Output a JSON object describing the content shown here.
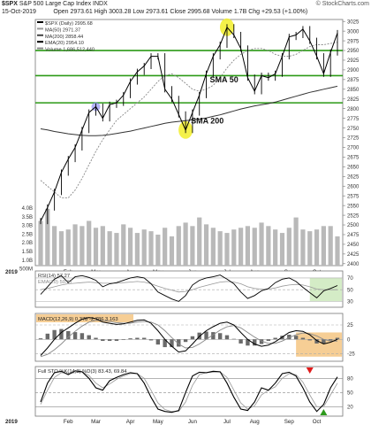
{
  "header": {
    "symbol": "$SPX",
    "name": "S&P 500 Large Cap Index",
    "exchange": "INDX",
    "date": "15-Oct-2019",
    "open_label": "Open",
    "open": "2973.61",
    "high_label": "High",
    "high": "3003.28",
    "low_label": "Low",
    "low": "2973.61",
    "close_label": "Close",
    "close": "2995.68",
    "vol_label": "Volume",
    "vol": "1.7B",
    "chg_label": "Chg",
    "chg": "+29.53 (+1.00%)",
    "brand": "© StockCharts.com"
  },
  "legend": [
    {
      "text": "$SPX (Daily) 2995.68",
      "color": "#000000"
    },
    {
      "text": "MA(50) 2971.37",
      "color": "#9a9a9a"
    },
    {
      "text": "MA(200) 2858.44",
      "color": "#444444"
    },
    {
      "text": "EMA(20) 2954.10",
      "color": "#000000"
    },
    {
      "text": "Volume 1,686,512,440",
      "color": "#888888"
    }
  ],
  "annotations": {
    "sma50": "SMA 50",
    "sma200": "SMA 200"
  },
  "colors": {
    "support_line": "#2b9a16",
    "highlight": "#f2ee2a",
    "price": "#000000",
    "volume": "#b9b9b9",
    "panel_fill": "#f4f4f4",
    "orange_box": "#f5c98a",
    "green_box": "#cfeac0",
    "down_arrow": "#e01b1b",
    "up_arrow": "#2e9a1d"
  },
  "chart_data": [
    {
      "type": "line",
      "title": "$SPX S&P 500 Large Cap Index INDX",
      "x_labels": [
        "2019",
        "Feb",
        "Mar",
        "Apr",
        "May",
        "Jun",
        "Jul",
        "Aug",
        "Sep",
        "Oct"
      ],
      "y_ticks": [
        2400,
        2425,
        2450,
        2475,
        2500,
        2525,
        2550,
        2575,
        2600,
        2625,
        2650,
        2675,
        2700,
        2725,
        2750,
        2775,
        2800,
        2825,
        2850,
        2875,
        2900,
        2925,
        2950,
        2975,
        3000,
        3025
      ],
      "ylim": [
        2395,
        3030
      ],
      "volume_ticks": [
        "4.0B",
        "3.5B",
        "3.0B",
        "2.5B",
        "2.0B",
        "1.5B",
        "1.0B",
        "500M"
      ],
      "support_levels": [
        2950,
        2885,
        2815
      ],
      "series": [
        {
          "name": "$SPX",
          "values": [
            2510,
            2545,
            2585,
            2635,
            2670,
            2700,
            2745,
            2790,
            2805,
            2775,
            2810,
            2815,
            2835,
            2870,
            2895,
            2910,
            2935,
            2935,
            2850,
            2825,
            2785,
            2745,
            2790,
            2835,
            2890,
            2935,
            2965,
            3010,
            2990,
            2955,
            2880,
            2845,
            2885,
            2880,
            2890,
            2935,
            2985,
            2990,
            3005,
            2975,
            2935,
            2890,
            2945,
            2995
          ]
        },
        {
          "name": "MA(50)",
          "values": [
            2615,
            2600,
            2585,
            2570,
            2570,
            2590,
            2620,
            2655,
            2690,
            2720,
            2745,
            2770,
            2785,
            2800,
            2815,
            2830,
            2850,
            2870,
            2885,
            2890,
            2880,
            2865,
            2850,
            2845,
            2850,
            2860,
            2880,
            2905,
            2925,
            2940,
            2950,
            2955,
            2955,
            2950,
            2940,
            2935,
            2935,
            2940,
            2950,
            2960,
            2965,
            2965,
            2968,
            2971
          ]
        },
        {
          "name": "MA(200)",
          "values": [
            2748,
            2745,
            2741,
            2738,
            2735,
            2733,
            2731,
            2730,
            2730,
            2731,
            2733,
            2736,
            2739,
            2742,
            2746,
            2750,
            2754,
            2758,
            2762,
            2765,
            2767,
            2769,
            2771,
            2773,
            2776,
            2780,
            2784,
            2789,
            2794,
            2799,
            2803,
            2807,
            2810,
            2813,
            2817,
            2822,
            2827,
            2832,
            2837,
            2842,
            2846,
            2850,
            2854,
            2858
          ]
        }
      ],
      "volume": [
        2.6,
        3.3,
        2.3,
        2.0,
        2.1,
        2.4,
        2.3,
        2.6,
        2.2,
        2.3,
        2.0,
        1.9,
        2.4,
        2.2,
        1.9,
        2.1,
        2.0,
        1.8,
        2.2,
        1.7,
        2.3,
        2.5,
        2.3,
        2.8,
        2.4,
        2.2,
        2.0,
        1.9,
        2.1,
        2.2,
        2.3,
        2.2,
        2.5,
        2.3,
        2.1,
        1.9,
        2.2,
        2.8,
        2.1,
        2.0,
        2.1,
        2.3,
        2.3,
        1.7
      ]
    },
    {
      "type": "line",
      "title": "RSI(14) 57.27",
      "overlay_label": "EMA(20) 50.37",
      "y_ticks": [
        30,
        50,
        70
      ],
      "ylim": [
        20,
        82
      ],
      "series": [
        {
          "name": "RSI(14)",
          "values": [
            42,
            55,
            68,
            74,
            62,
            72,
            74,
            71,
            66,
            55,
            60,
            62,
            66,
            70,
            72,
            70,
            60,
            46,
            40,
            34,
            30,
            40,
            58,
            66,
            70,
            72,
            75,
            68,
            60,
            46,
            35,
            40,
            48,
            52,
            62,
            68,
            70,
            64,
            54,
            45,
            36,
            48,
            52,
            57
          ]
        },
        {
          "name": "EMA(20)",
          "values": [
            50,
            52,
            55,
            58,
            60,
            61,
            62,
            63,
            62,
            61,
            61,
            61,
            62,
            63,
            64,
            63,
            60,
            56,
            52,
            49,
            46,
            47,
            50,
            54,
            57,
            60,
            63,
            64,
            63,
            60,
            55,
            52,
            51,
            51,
            53,
            56,
            58,
            59,
            58,
            55,
            51,
            50,
            50,
            50
          ]
        }
      ]
    },
    {
      "type": "line",
      "title": "MACD(12,26,9) 0.378 -2.786 3.163",
      "y_ticks": [
        -25,
        0,
        25
      ],
      "ylim": [
        -38,
        45
      ],
      "series": [
        {
          "name": "MACD",
          "values": [
            -28,
            -15,
            0,
            12,
            20,
            28,
            35,
            38,
            36,
            30,
            28,
            26,
            27,
            30,
            33,
            34,
            28,
            15,
            0,
            -12,
            -22,
            -20,
            -8,
            5,
            15,
            22,
            28,
            30,
            25,
            12,
            0,
            -8,
            -12,
            -10,
            -4,
            4,
            12,
            15,
            14,
            8,
            -2,
            -8,
            -5,
            0
          ]
        },
        {
          "name": "Signal",
          "values": [
            -30,
            -26,
            -18,
            -8,
            4,
            14,
            23,
            30,
            33,
            33,
            31,
            29,
            28,
            28,
            30,
            31,
            30,
            25,
            15,
            3,
            -8,
            -15,
            -14,
            -8,
            0,
            8,
            16,
            22,
            24,
            20,
            12,
            4,
            -3,
            -7,
            -7,
            -3,
            3,
            8,
            11,
            10,
            6,
            0,
            -3,
            -3
          ]
        }
      ]
    },
    {
      "type": "line",
      "title": "Full STO %K(14,3) %D(3) 83.43, 69.84",
      "y_ticks": [
        20,
        50,
        80
      ],
      "ylim": [
        0,
        105
      ],
      "series": [
        {
          "name": "%K",
          "values": [
            30,
            70,
            92,
            95,
            88,
            96,
            94,
            80,
            60,
            55,
            75,
            82,
            88,
            92,
            90,
            70,
            40,
            15,
            10,
            8,
            12,
            50,
            85,
            93,
            92,
            95,
            94,
            70,
            40,
            15,
            12,
            30,
            60,
            55,
            70,
            90,
            93,
            85,
            60,
            30,
            10,
            25,
            60,
            83
          ]
        },
        {
          "name": "%D",
          "values": [
            25,
            55,
            82,
            92,
            90,
            92,
            94,
            86,
            70,
            60,
            68,
            78,
            85,
            90,
            90,
            80,
            55,
            28,
            14,
            10,
            10,
            30,
            65,
            88,
            92,
            93,
            94,
            82,
            55,
            28,
            15,
            22,
            45,
            55,
            62,
            80,
            90,
            88,
            72,
            45,
            20,
            20,
            45,
            70
          ]
        }
      ]
    }
  ]
}
